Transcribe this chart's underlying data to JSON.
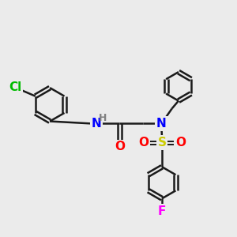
{
  "bg_color": "#ebebeb",
  "bond_color": "#1a1a1a",
  "bond_width": 1.8,
  "atom_colors": {
    "Cl": "#00bb00",
    "N": "#0000ff",
    "O": "#ff0000",
    "S": "#cccc00",
    "F": "#ff00ff",
    "H": "#808080",
    "C": "#1a1a1a"
  },
  "font_size_atom": 11,
  "font_size_h": 9
}
